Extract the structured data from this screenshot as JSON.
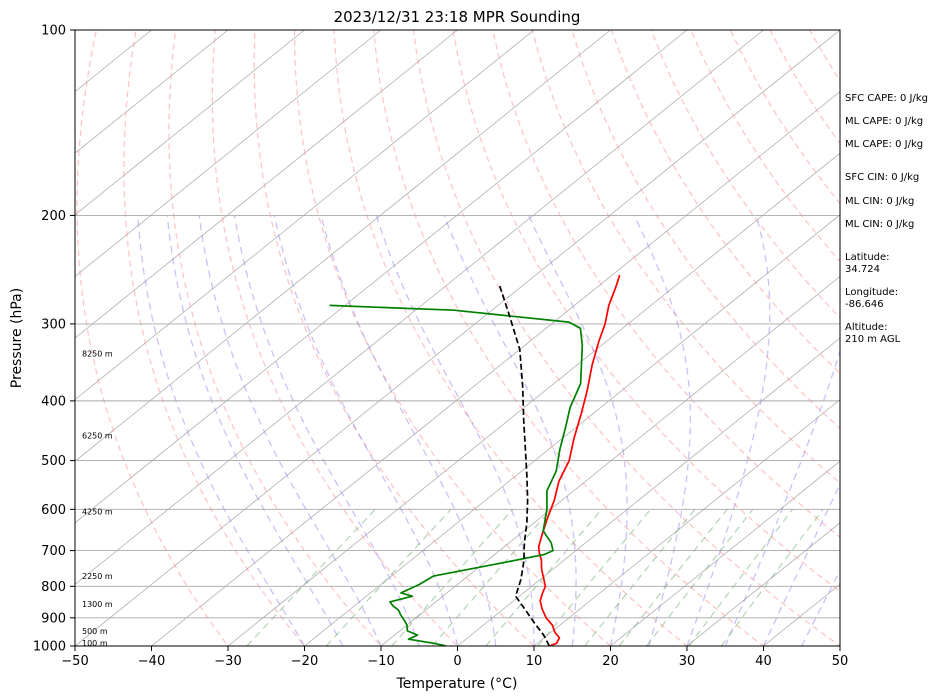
{
  "chart_data": {
    "type": "line",
    "title": "2023/12/31 23:18 MPR Sounding",
    "xlabel": "Temperature (°C)",
    "ylabel": "Pressure (hPa)",
    "xlim": [
      -50,
      50
    ],
    "ylim": [
      1000,
      100
    ],
    "y_scale": "log",
    "x_ticks": [
      -50,
      -40,
      -30,
      -20,
      -10,
      0,
      10,
      20,
      30,
      40,
      50
    ],
    "y_ticks": [
      1000,
      900,
      800,
      700,
      600,
      500,
      400,
      300,
      200,
      100
    ],
    "grid": "horizontal isobars",
    "series": [
      {
        "color": "#ff0000",
        "points": [
          [
            12.0,
            1000
          ],
          [
            12.5,
            990
          ],
          [
            12.0,
            970
          ],
          [
            10.5,
            950
          ],
          [
            9.0,
            925
          ],
          [
            7.0,
            900
          ],
          [
            5.0,
            870
          ],
          [
            3.5,
            845
          ],
          [
            2.5,
            820
          ],
          [
            1.8,
            800
          ],
          [
            0.5,
            780
          ],
          [
            -1.5,
            750
          ],
          [
            -3.0,
            725
          ],
          [
            -4.5,
            705
          ],
          [
            -5.5,
            690
          ],
          [
            -7.0,
            660
          ],
          [
            -9.0,
            620
          ],
          [
            -11.0,
            580
          ],
          [
            -13.5,
            540
          ],
          [
            -15.5,
            500
          ],
          [
            -18.5,
            460
          ],
          [
            -21.5,
            420
          ],
          [
            -24.5,
            385
          ],
          [
            -28.0,
            350
          ],
          [
            -31.0,
            320
          ],
          [
            -33.0,
            300
          ],
          [
            -35.5,
            280
          ],
          [
            -37.5,
            262
          ],
          [
            -39.0,
            250
          ]
        ]
      },
      {
        "color": "#008000",
        "points": [
          [
            -1.5,
            1000
          ],
          [
            -3.5,
            990
          ],
          [
            -7.5,
            975
          ],
          [
            -7.0,
            960
          ],
          [
            -9.0,
            945
          ],
          [
            -10.0,
            925
          ],
          [
            -11.0,
            910
          ],
          [
            -12.5,
            890
          ],
          [
            -13.5,
            875
          ],
          [
            -15.0,
            860
          ],
          [
            -16.0,
            848
          ],
          [
            -14.0,
            830
          ],
          [
            -16.0,
            820
          ],
          [
            -15.0,
            795
          ],
          [
            -14.5,
            770
          ],
          [
            -8.0,
            735
          ],
          [
            -3.5,
            710
          ],
          [
            -3.0,
            700
          ],
          [
            -4.5,
            680
          ],
          [
            -7.5,
            650
          ],
          [
            -10.5,
            600
          ],
          [
            -13.5,
            560
          ],
          [
            -15.5,
            520
          ],
          [
            -18.5,
            480
          ],
          [
            -21.5,
            440
          ],
          [
            -24.0,
            410
          ],
          [
            -26.5,
            375
          ],
          [
            -30.0,
            345
          ],
          [
            -32.5,
            325
          ],
          [
            -35.5,
            305
          ],
          [
            -38.0,
            298
          ],
          [
            -55.0,
            285
          ],
          [
            -72.0,
            280
          ]
        ]
      },
      {
        "color": "#000000",
        "style": "dashed",
        "points": [
          [
            12.0,
            1000
          ],
          [
            9.5,
            960
          ],
          [
            6.5,
            920
          ],
          [
            3.5,
            880
          ],
          [
            -0.5,
            830
          ],
          [
            -2.5,
            780
          ],
          [
            -5.0,
            730
          ],
          [
            -8.0,
            680
          ],
          [
            -11.0,
            630
          ],
          [
            -14.5,
            580
          ],
          [
            -18.5,
            530
          ],
          [
            -23.0,
            480
          ],
          [
            -28.0,
            430
          ],
          [
            -33.5,
            380
          ],
          [
            -40.0,
            330
          ],
          [
            -47.0,
            290
          ],
          [
            -53.0,
            260
          ]
        ]
      }
    ],
    "height_labels": [
      "100 m",
      "500 m",
      "1300 m",
      "2250 m",
      "4250 m",
      "6250 m",
      "8250 m"
    ],
    "height_label_pressures": [
      988,
      945,
      855,
      770,
      605,
      455,
      335
    ]
  },
  "stats": {
    "sfc_cape": "SFC CAPE: 0 J/kg",
    "ml_cape_1": "ML CAPE: 0 J/kg",
    "ml_cape_2": "ML CAPE: 0 J/kg",
    "sfc_cin": "SFC CIN: 0 J/kg",
    "ml_cin_1": "ML CIN: 0 J/kg",
    "ml_cin_2": "ML CIN: 0 J/kg",
    "latitude": "Latitude:\n34.724",
    "longitude": "Longitude:\n-86.646",
    "altitude": "Altitude:\n210 m AGL"
  }
}
